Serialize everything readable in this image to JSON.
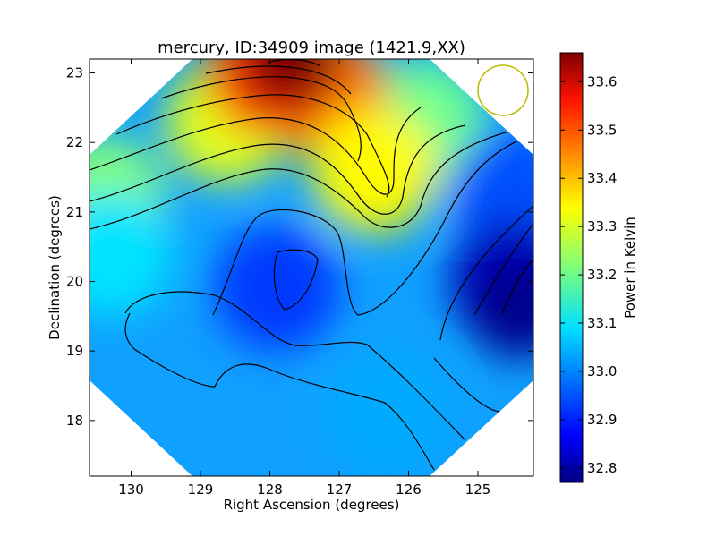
{
  "chart_data": {
    "type": "heatmap",
    "title": "mercury, ID:34909 image (1421.9,XX)",
    "xlabel": "Right Ascension (degrees)",
    "ylabel": "Declination (degrees)",
    "xlim": [
      130.6,
      124.2
    ],
    "ylim": [
      17.2,
      23.2
    ],
    "x_ticks": [
      130,
      129,
      128,
      127,
      126,
      125
    ],
    "y_ticks": [
      18,
      19,
      20,
      21,
      22,
      23
    ],
    "colorbar": {
      "label": "Power in Kelvin",
      "range": [
        32.77,
        33.66
      ],
      "ticks": [
        "32.8",
        "32.9",
        "33.0",
        "33.1",
        "33.2",
        "33.3",
        "33.4",
        "33.5",
        "33.6"
      ],
      "colormap": "jet"
    },
    "field_features": [
      {
        "kind": "maximum",
        "ra": 127.7,
        "dec": 23.2,
        "value": 33.66
      },
      {
        "kind": "local high",
        "ra": 126.5,
        "dec": 21.6,
        "value": 33.33
      },
      {
        "kind": "local low",
        "ra": 127.9,
        "dec": 19.9,
        "value": 32.93
      },
      {
        "kind": "minimum",
        "ra": 124.4,
        "dec": 19.6,
        "value": 32.78
      },
      {
        "kind": "local high",
        "ra": 126.3,
        "dec": 18.1,
        "value": 33.03
      }
    ],
    "contours": "solid black lines",
    "beam_marker": {
      "shape": "circle",
      "color": "#bbbb00",
      "ra": 124.6,
      "dec": 22.75,
      "radius_deg": 0.38
    }
  }
}
